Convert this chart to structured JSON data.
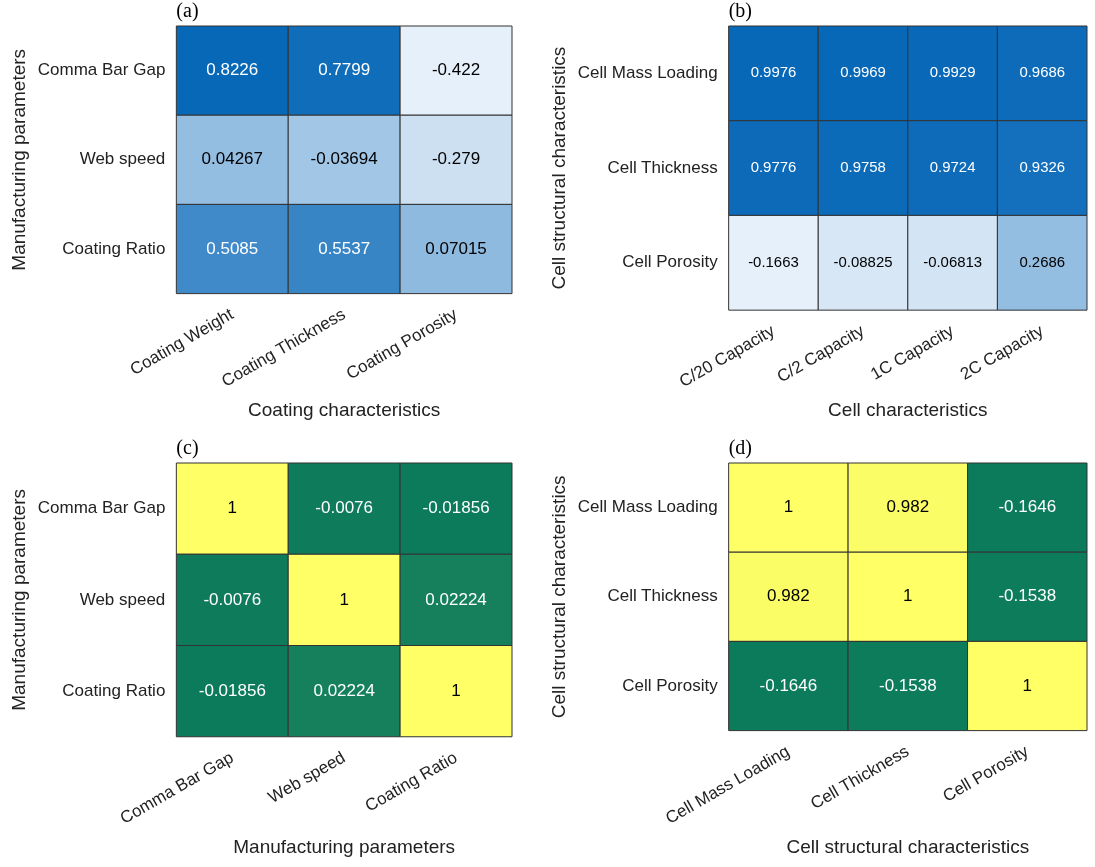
{
  "chart_data": [
    {
      "type": "heatmap",
      "title": "(a)",
      "xlabel": "Coating characteristics",
      "ylabel": "Manufacturing parameters",
      "categories": [
        "Coating Weight",
        "Coating Thickness",
        "Coating Porosity"
      ],
      "y_categories": [
        "Comma Bar Gap",
        "Web speed",
        "Coating Ratio"
      ],
      "cells": [
        [
          0.8226,
          0.7799,
          -0.422
        ],
        [
          0.04267,
          -0.03694,
          -0.279
        ],
        [
          0.5085,
          0.5537,
          0.07015
        ]
      ],
      "colors": [
        "#e6f0fa",
        "#0868b8"
      ],
      "data_labels": true
    },
    {
      "type": "heatmap",
      "title": "(b)",
      "xlabel": "Cell characteristics",
      "ylabel": "Cell structural characteristics",
      "categories": [
        "C/20 Capacity",
        "C/2 Capacity",
        "1C Capacity",
        "2C Capacity"
      ],
      "y_categories": [
        "Cell Mass Loading",
        "Cell Thickness",
        "Cell Porosity"
      ],
      "cells": [
        [
          0.9976,
          0.9969,
          0.9929,
          0.9686
        ],
        [
          0.9776,
          0.9758,
          0.9724,
          0.9326
        ],
        [
          -0.1663,
          -0.08825,
          -0.06813,
          0.2686
        ]
      ],
      "colors": [
        "#e6f0fa",
        "#0868b8"
      ],
      "data_labels": true
    },
    {
      "type": "heatmap",
      "title": "(c)",
      "xlabel": "Manufacturing parameters",
      "ylabel": "Manufacturing parameters",
      "categories": [
        "Comma Bar Gap",
        "Web speed",
        "Coating Ratio"
      ],
      "y_categories": [
        "Comma Bar Gap",
        "Web speed",
        "Coating Ratio"
      ],
      "cells": [
        [
          1,
          -0.0076,
          -0.01856
        ],
        [
          -0.0076,
          1,
          0.02224
        ],
        [
          -0.01856,
          0.02224,
          1
        ]
      ],
      "colors": [
        "#0b7b5b",
        "#ffff66"
      ],
      "data_labels": true
    },
    {
      "type": "heatmap",
      "title": "(d)",
      "xlabel": "Cell structural characteristics",
      "ylabel": "Cell structural characteristics",
      "categories": [
        "Cell Mass Loading",
        "Cell Thickness",
        "Cell Porosity"
      ],
      "y_categories": [
        "Cell Mass Loading",
        "Cell Thickness",
        "Cell Porosity"
      ],
      "cells": [
        [
          1,
          0.982,
          -0.1646
        ],
        [
          0.982,
          1,
          -0.1538
        ],
        [
          -0.1646,
          -0.1538,
          1
        ]
      ],
      "colors": [
        "#0b7b5b",
        "#ffff66"
      ],
      "data_labels": true
    }
  ]
}
